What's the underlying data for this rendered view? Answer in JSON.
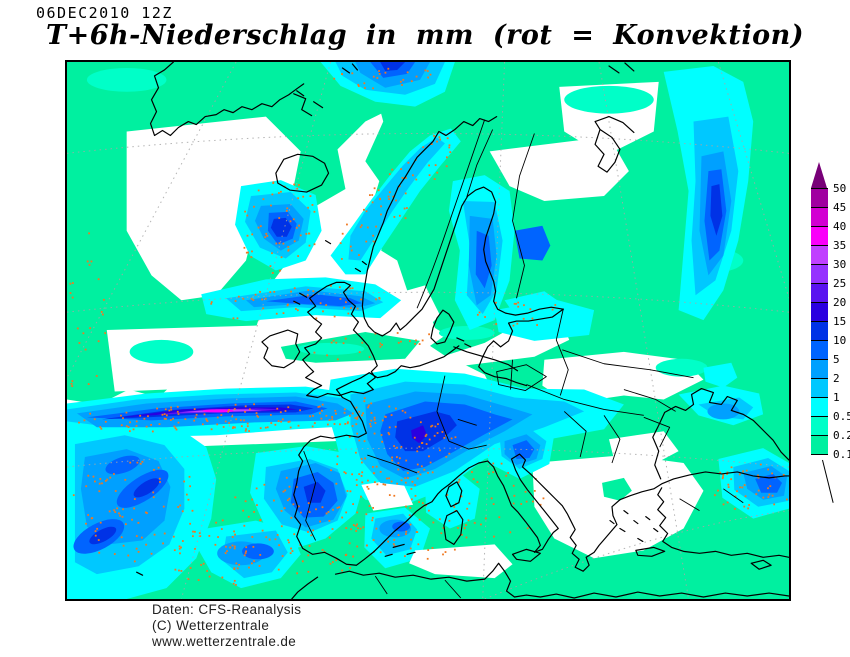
{
  "header": {
    "datetime": "06DEC2010 12Z",
    "title": "T+6h-Niederschlag in mm (rot = Konvektion)"
  },
  "footer": {
    "line1": "Daten: CFS-Reanalysis",
    "line2": "(C) Wetterzentrale",
    "line3": "www.wetterzentrale.de"
  },
  "legend": {
    "unit": "mm",
    "levels": [
      "50",
      "45",
      "40",
      "35",
      "30",
      "25",
      "20",
      "15",
      "10",
      "5",
      "2",
      "1",
      "0.5",
      "0.2",
      "0.1"
    ],
    "segment_colors": [
      "#A000A0",
      "#D200D2",
      "#FA00FA",
      "#C040FF",
      "#9632FF",
      "#5A14F0",
      "#2A00E0",
      "#0032E6",
      "#0064FF",
      "#00A0FF",
      "#00C8FF",
      "#00FFFF",
      "#00FFC8",
      "#00F0A0"
    ],
    "arrow_color": "#780078"
  },
  "palette": {
    "green": "#00F0A0",
    "lightgreen": "#00FFC8",
    "cyan": "#00FFFF",
    "sky": "#00C8FF",
    "azure": "#00A0FF",
    "medblue": "#0064FF",
    "blue": "#0032E6",
    "deep": "#2A00E0",
    "violet": "#5A14F0",
    "purple": "#C040FF",
    "magenta": "#FA00FA",
    "white": "#FFFFFF",
    "convection": "#F07820",
    "grid": "#A6A6A6",
    "coast": "#000000"
  }
}
